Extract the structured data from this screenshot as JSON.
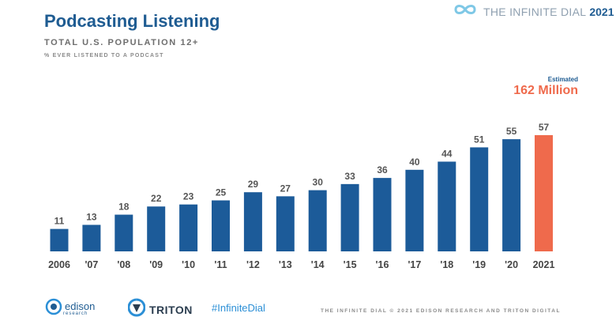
{
  "header": {
    "title": "Podcasting Listening",
    "subtitle": "TOTAL U.S. POPULATION 12+",
    "subsubtitle": "% EVER LISTENED TO A PODCAST"
  },
  "brand": {
    "text": "THE INFINITE DIAL",
    "year": "2021"
  },
  "estimate": {
    "label": "Estimated",
    "value": "162 Million"
  },
  "colors": {
    "bar": "#1c5b99",
    "highlight": "#ef6a4c",
    "value_label": "#555555",
    "tick_label": "#444444"
  },
  "chart_data": {
    "type": "bar",
    "categories": [
      "2006",
      "'07",
      "'08",
      "'09",
      "'10",
      "'11",
      "'12",
      "'13",
      "'14",
      "'15",
      "'16",
      "'17",
      "'18",
      "'19",
      "'20",
      "2021"
    ],
    "values": [
      11,
      13,
      18,
      22,
      23,
      25,
      29,
      27,
      30,
      33,
      36,
      40,
      44,
      51,
      55,
      57
    ],
    "highlight_index": 15,
    "ylim": [
      0,
      60
    ],
    "grid": false,
    "title": "Podcasting Listening",
    "xlabel": "",
    "ylabel": ""
  },
  "footer": {
    "edison_name": "edison",
    "edison_sub": "research",
    "triton_name": "TRITON",
    "hashtag": "#InfiniteDial",
    "copyright": "THE INFINITE DIAL  © 2021 EDISON RESEARCH AND TRITON DIGITAL"
  }
}
